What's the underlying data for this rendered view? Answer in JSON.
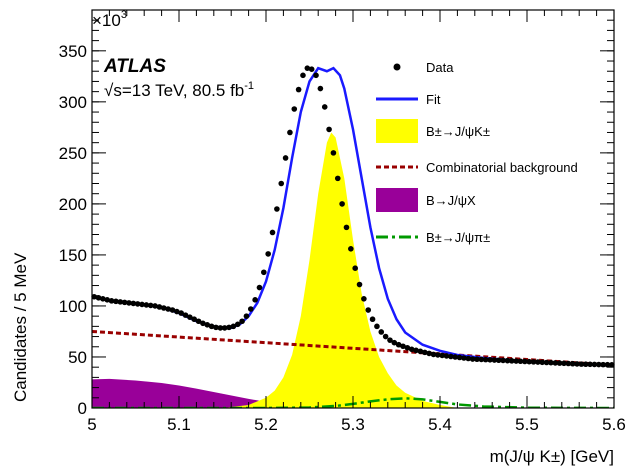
{
  "chart_data": {
    "type": "line",
    "xlabel": "m(J/ψ K±) [GeV]",
    "ylabel": "Candidates / 5 MeV",
    "y_multiplier": "×10",
    "y_multiplier_exp": "3",
    "xlim": [
      5.0,
      5.6
    ],
    "ylim": [
      0,
      390
    ],
    "xticks": [
      5.0,
      5.1,
      5.2,
      5.3,
      5.4,
      5.5,
      5.6
    ],
    "xtick_labels": [
      "5",
      "5.1",
      "5.2",
      "5.3",
      "5.4",
      "5.5",
      "5.6"
    ],
    "yticks": [
      0,
      50,
      100,
      150,
      200,
      250,
      300,
      350
    ],
    "ytick_labels": [
      "0",
      "50",
      "100",
      "150",
      "200",
      "250",
      "300",
      "350"
    ],
    "grid": false,
    "legend_position": "top-right",
    "annotation": {
      "experiment": "ATLAS",
      "energy_label": "√s=13 TeV, 80.5 fb",
      "energy_superscript": "-1"
    },
    "legend": {
      "data": "Data",
      "fit": "Fit",
      "signal": "B±→J/ψK±",
      "combinatorial": "Combinatorial background",
      "bjpsix": "B→J/ψX",
      "bjpsipi": "B±→J/ψπ±"
    },
    "colors": {
      "data": "#000000",
      "fit": "#1a1aff",
      "signal": "#ffff00",
      "combinatorial": "#990000",
      "bjpsix": "#990099",
      "bjpsipi": "#009900"
    },
    "series": [
      {
        "name": "Data",
        "x": [
          5.0025,
          5.0075,
          5.0125,
          5.0175,
          5.0225,
          5.0275,
          5.0325,
          5.0375,
          5.0425,
          5.0475,
          5.0525,
          5.0575,
          5.0625,
          5.0675,
          5.0725,
          5.0775,
          5.0825,
          5.0875,
          5.0925,
          5.0975,
          5.1025,
          5.1075,
          5.1125,
          5.1175,
          5.1225,
          5.1275,
          5.1325,
          5.1375,
          5.1425,
          5.1475,
          5.1525,
          5.1575,
          5.1625,
          5.1675,
          5.1725,
          5.1775,
          5.1825,
          5.1875,
          5.1925,
          5.1975,
          5.2025,
          5.2075,
          5.2125,
          5.2175,
          5.2225,
          5.2275,
          5.2325,
          5.2375,
          5.2425,
          5.2475,
          5.2525,
          5.2575,
          5.2625,
          5.2675,
          5.2725,
          5.2775,
          5.2825,
          5.2875,
          5.2925,
          5.2975,
          5.3025,
          5.3075,
          5.3125,
          5.3175,
          5.3225,
          5.3275,
          5.3325,
          5.3375,
          5.3425,
          5.3475,
          5.3525,
          5.3575,
          5.3625,
          5.3675,
          5.3725,
          5.3775,
          5.3825,
          5.3875,
          5.3925,
          5.3975,
          5.4025,
          5.4075,
          5.4125,
          5.4175,
          5.4225,
          5.4275,
          5.4325,
          5.4375,
          5.4425,
          5.4475,
          5.4525,
          5.4575,
          5.4625,
          5.4675,
          5.4725,
          5.4775,
          5.4825,
          5.4875,
          5.4925,
          5.4975,
          5.5025,
          5.5075,
          5.5125,
          5.5175,
          5.5225,
          5.5275,
          5.5325,
          5.5375,
          5.5425,
          5.5475,
          5.5525,
          5.5575,
          5.5625,
          5.5675,
          5.5725,
          5.5775,
          5.5825,
          5.5875,
          5.5925,
          5.5975
        ],
        "y": [
          109,
          108,
          107,
          106,
          105,
          104.5,
          104,
          103.5,
          103,
          102.5,
          102,
          101.5,
          101,
          100.5,
          100,
          99,
          98,
          97,
          96,
          94.5,
          93,
          91,
          89,
          87,
          85,
          83,
          81.5,
          80,
          79,
          78.5,
          78.5,
          79,
          80,
          82,
          85,
          90,
          97,
          106,
          118,
          133,
          151,
          172,
          195,
          220,
          245,
          270,
          293,
          312,
          326,
          333,
          332,
          326,
          313,
          295,
          273,
          250,
          225,
          200,
          177,
          156,
          137,
          121,
          107,
          96,
          87,
          80,
          74.5,
          70,
          66.5,
          64,
          62,
          60.5,
          59,
          57.5,
          56.5,
          55.5,
          54.5,
          53.5,
          52.5,
          52,
          51.5,
          51,
          50.5,
          50,
          49.5,
          49,
          48.5,
          48,
          47.8,
          47.6,
          47.4,
          47.2,
          47,
          46.8,
          46.6,
          46.4,
          46.2,
          46,
          45.8,
          45.6,
          45.4,
          45.2,
          45,
          44.8,
          44.6,
          44.4,
          44.2,
          44,
          43.8,
          43.6,
          43.4,
          43.2,
          43,
          42.9,
          42.8,
          42.7,
          42.6,
          42.5,
          42.4,
          42.3
        ]
      },
      {
        "name": "Fit",
        "x": [
          5.0,
          5.02,
          5.04,
          5.06,
          5.08,
          5.1,
          5.12,
          5.14,
          5.15,
          5.16,
          5.17,
          5.18,
          5.19,
          5.2,
          5.21,
          5.22,
          5.23,
          5.24,
          5.25,
          5.26,
          5.27,
          5.2775,
          5.285,
          5.29,
          5.3,
          5.31,
          5.32,
          5.33,
          5.34,
          5.35,
          5.36,
          5.38,
          5.4,
          5.42,
          5.45,
          5.48,
          5.5,
          5.52,
          5.55,
          5.58,
          5.6
        ],
        "y": [
          110,
          105,
          103,
          101,
          98.5,
          93,
          85,
          80,
          78.5,
          78.5,
          82,
          90,
          103,
          124,
          155,
          196,
          245,
          290,
          320,
          333,
          330,
          333,
          326,
          313,
          273,
          225,
          177,
          137,
          107,
          87,
          74,
          62,
          56,
          52,
          49,
          47,
          45.5,
          44.5,
          43.5,
          42.5,
          42
        ]
      },
      {
        "name": "B±→J/ψK±",
        "x": [
          5.15,
          5.18,
          5.2,
          5.21,
          5.22,
          5.23,
          5.24,
          5.25,
          5.26,
          5.27,
          5.275,
          5.28,
          5.29,
          5.3,
          5.31,
          5.32,
          5.33,
          5.34,
          5.35,
          5.36,
          5.38,
          5.4,
          5.42
        ],
        "y": [
          0,
          3,
          10,
          17,
          30,
          52,
          90,
          145,
          210,
          260,
          270,
          265,
          225,
          165,
          112,
          75,
          50,
          34,
          22,
          15,
          7,
          3,
          0
        ]
      },
      {
        "name": "Combinatorial background",
        "x": [
          5.0,
          5.1,
          5.2,
          5.3,
          5.4,
          5.5,
          5.6
        ],
        "y": [
          75,
          69.5,
          64,
          58.5,
          53,
          47.5,
          42
        ]
      },
      {
        "name": "B→J/ψX",
        "x": [
          5.0,
          5.02,
          5.05,
          5.08,
          5.1,
          5.12,
          5.15,
          5.18,
          5.2,
          5.22,
          5.25,
          5.28,
          5.3
        ],
        "y": [
          28,
          28.5,
          27,
          24.5,
          22,
          19,
          14,
          9,
          6,
          3.5,
          1.5,
          0.4,
          0
        ]
      },
      {
        "name": "B±→J/ψπ±",
        "x": [
          5.0,
          5.2,
          5.25,
          5.28,
          5.3,
          5.32,
          5.34,
          5.36,
          5.38,
          5.4,
          5.42,
          5.45,
          5.5,
          5.6
        ],
        "y": [
          0,
          0,
          0.5,
          2,
          4,
          6.5,
          8.5,
          9.5,
          8.5,
          6,
          3.5,
          1.5,
          0.3,
          0
        ]
      }
    ]
  }
}
